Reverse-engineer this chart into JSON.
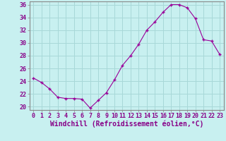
{
  "hours": [
    0,
    1,
    2,
    3,
    4,
    5,
    6,
    7,
    8,
    9,
    10,
    11,
    12,
    13,
    14,
    15,
    16,
    17,
    18,
    19,
    20,
    21,
    22,
    23
  ],
  "values": [
    24.5,
    23.8,
    22.8,
    21.5,
    21.3,
    21.3,
    21.2,
    19.8,
    21.0,
    22.2,
    24.2,
    26.5,
    28.0,
    29.8,
    32.0,
    33.3,
    34.8,
    36.0,
    36.0,
    35.5,
    33.8,
    30.5,
    30.3,
    28.2
  ],
  "line_color": "#990099",
  "marker_color": "#990099",
  "bg_color": "#c8f0f0",
  "grid_color": "#a8d8d8",
  "xlabel": "Windchill (Refroidissement éolien,°C)",
  "ylim": [
    19.5,
    36.5
  ],
  "yticks": [
    20,
    22,
    24,
    26,
    28,
    30,
    32,
    34,
    36
  ],
  "xticks": [
    0,
    1,
    2,
    3,
    4,
    5,
    6,
    7,
    8,
    9,
    10,
    11,
    12,
    13,
    14,
    15,
    16,
    17,
    18,
    19,
    20,
    21,
    22,
    23
  ],
  "tick_label_fontsize": 6,
  "xlabel_fontsize": 7,
  "axis_text_color": "#880088"
}
